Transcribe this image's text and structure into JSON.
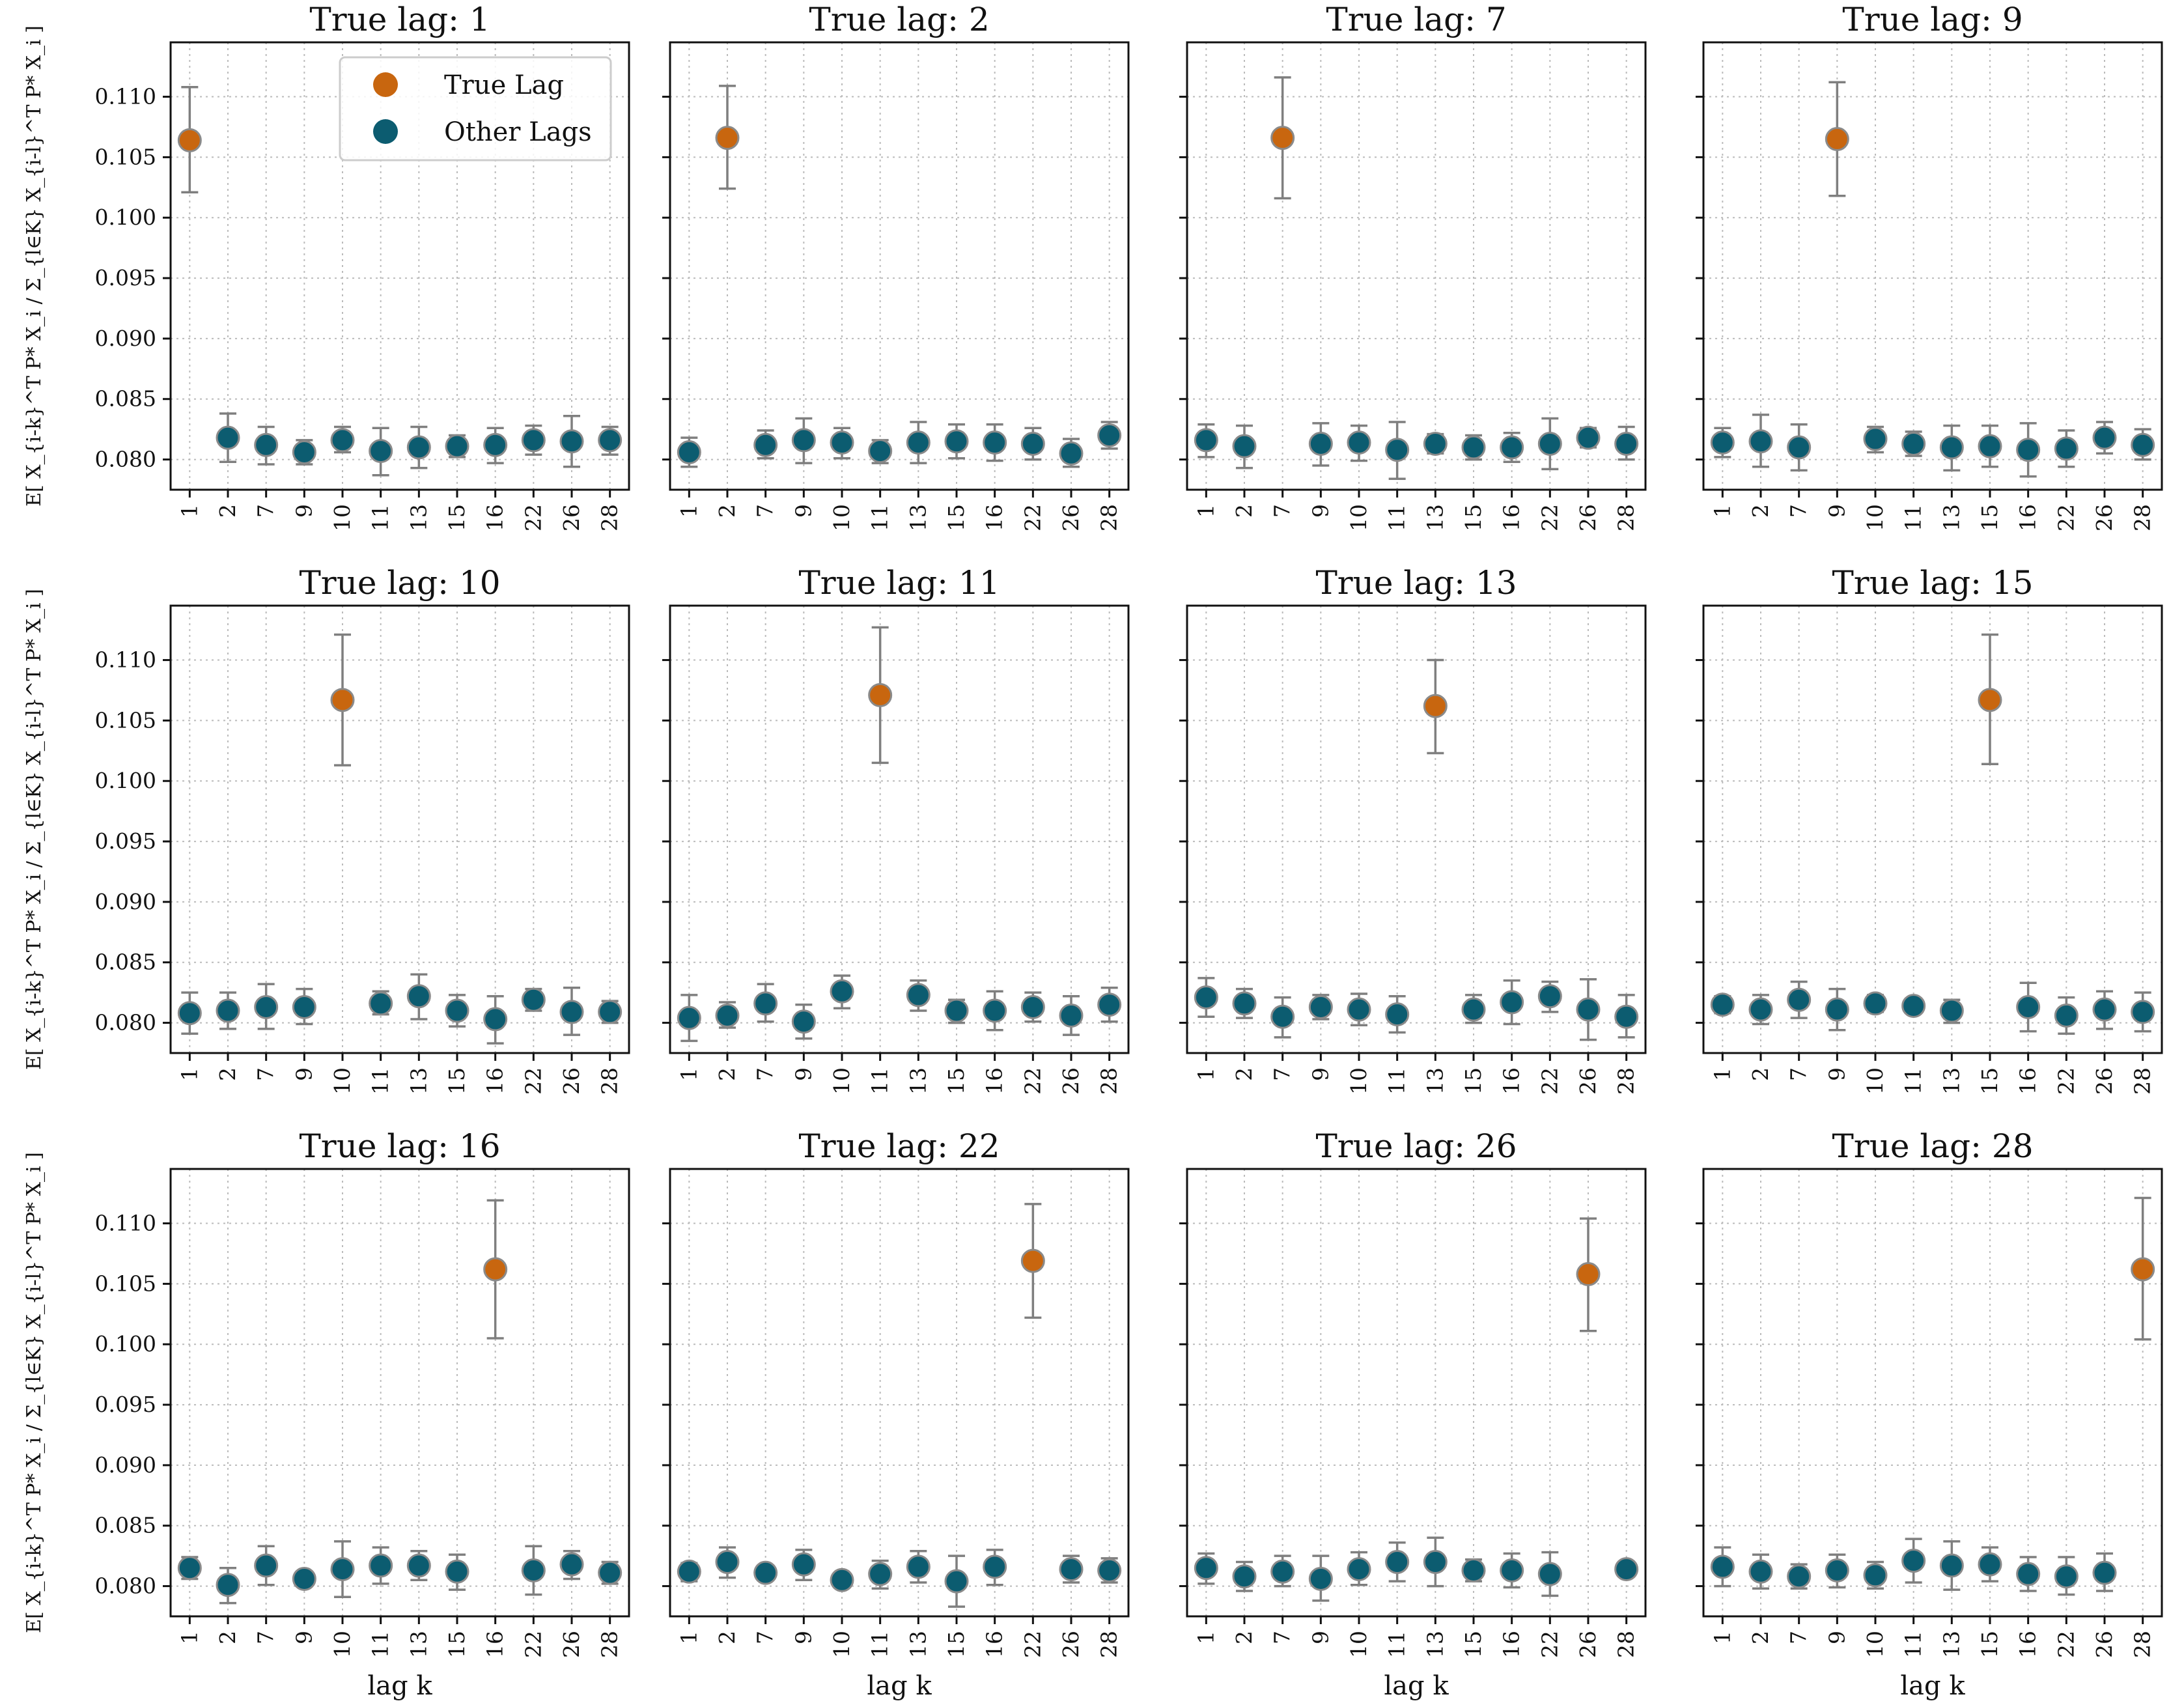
{
  "chart_data": {
    "type": "scatter",
    "layout": "3 rows x 4 columns of subplots",
    "x_categories": [
      "1",
      "2",
      "7",
      "9",
      "10",
      "11",
      "13",
      "15",
      "16",
      "22",
      "26",
      "28"
    ],
    "xlabel": "lag k",
    "ylabel": "E[ X_{i-k}^T P* X_i / Σ_{l∈K} X_{i-l}^T P* X_i ]",
    "ylim": [
      0.0775,
      0.1145
    ],
    "yticks": [
      "0.080",
      "0.085",
      "0.090",
      "0.095",
      "0.100",
      "0.105",
      "0.110"
    ],
    "grid": true,
    "error_bars": true,
    "legend": {
      "placement": "top-right of first subplot",
      "entries": [
        {
          "label": "True Lag",
          "color": "#c8660f"
        },
        {
          "label": "Other Lags",
          "color": "#0c5c70"
        }
      ]
    },
    "subplots": [
      {
        "title": "True lag:  1",
        "true_lag": "1",
        "points": [
          {
            "k": "1",
            "y": 0.1064,
            "lo": 0.1021,
            "hi": 0.1108
          },
          {
            "k": "2",
            "y": 0.0818,
            "lo": 0.0798,
            "hi": 0.0838
          },
          {
            "k": "7",
            "y": 0.0812,
            "lo": 0.0796,
            "hi": 0.0827
          },
          {
            "k": "9",
            "y": 0.0806,
            "lo": 0.0796,
            "hi": 0.0816
          },
          {
            "k": "10",
            "y": 0.0816,
            "lo": 0.0806,
            "hi": 0.0827
          },
          {
            "k": "11",
            "y": 0.0807,
            "lo": 0.0787,
            "hi": 0.0826
          },
          {
            "k": "13",
            "y": 0.081,
            "lo": 0.0793,
            "hi": 0.0827
          },
          {
            "k": "15",
            "y": 0.0811,
            "lo": 0.0802,
            "hi": 0.082
          },
          {
            "k": "16",
            "y": 0.0812,
            "lo": 0.0797,
            "hi": 0.0826
          },
          {
            "k": "22",
            "y": 0.0816,
            "lo": 0.0804,
            "hi": 0.0828
          },
          {
            "k": "26",
            "y": 0.0815,
            "lo": 0.0794,
            "hi": 0.0836
          },
          {
            "k": "28",
            "y": 0.0816,
            "lo": 0.0804,
            "hi": 0.0827
          }
        ]
      },
      {
        "title": "True lag:  2",
        "true_lag": "2",
        "points": [
          {
            "k": "1",
            "y": 0.0806,
            "lo": 0.0794,
            "hi": 0.0818
          },
          {
            "k": "2",
            "y": 0.1066,
            "lo": 0.1024,
            "hi": 0.1109
          },
          {
            "k": "7",
            "y": 0.0812,
            "lo": 0.0801,
            "hi": 0.0824
          },
          {
            "k": "9",
            "y": 0.0816,
            "lo": 0.0797,
            "hi": 0.0834
          },
          {
            "k": "10",
            "y": 0.0814,
            "lo": 0.0801,
            "hi": 0.0826
          },
          {
            "k": "11",
            "y": 0.0807,
            "lo": 0.0797,
            "hi": 0.0816
          },
          {
            "k": "13",
            "y": 0.0814,
            "lo": 0.0797,
            "hi": 0.0831
          },
          {
            "k": "15",
            "y": 0.0815,
            "lo": 0.0801,
            "hi": 0.0829
          },
          {
            "k": "16",
            "y": 0.0814,
            "lo": 0.0799,
            "hi": 0.0829
          },
          {
            "k": "22",
            "y": 0.0813,
            "lo": 0.08,
            "hi": 0.0826
          },
          {
            "k": "26",
            "y": 0.0805,
            "lo": 0.0794,
            "hi": 0.0817
          },
          {
            "k": "28",
            "y": 0.082,
            "lo": 0.0809,
            "hi": 0.0831
          }
        ]
      },
      {
        "title": "True lag:  7",
        "true_lag": "7",
        "points": [
          {
            "k": "1",
            "y": 0.0816,
            "lo": 0.0802,
            "hi": 0.0829
          },
          {
            "k": "2",
            "y": 0.0811,
            "lo": 0.0793,
            "hi": 0.0828
          },
          {
            "k": "7",
            "y": 0.1066,
            "lo": 0.1016,
            "hi": 0.1116
          },
          {
            "k": "9",
            "y": 0.0813,
            "lo": 0.0795,
            "hi": 0.083
          },
          {
            "k": "10",
            "y": 0.0814,
            "lo": 0.0799,
            "hi": 0.0828
          },
          {
            "k": "11",
            "y": 0.0808,
            "lo": 0.0784,
            "hi": 0.0831
          },
          {
            "k": "13",
            "y": 0.0813,
            "lo": 0.0805,
            "hi": 0.0821
          },
          {
            "k": "15",
            "y": 0.081,
            "lo": 0.08,
            "hi": 0.082
          },
          {
            "k": "16",
            "y": 0.081,
            "lo": 0.0798,
            "hi": 0.0822
          },
          {
            "k": "22",
            "y": 0.0813,
            "lo": 0.0792,
            "hi": 0.0834
          },
          {
            "k": "26",
            "y": 0.0818,
            "lo": 0.081,
            "hi": 0.0826
          },
          {
            "k": "28",
            "y": 0.0813,
            "lo": 0.08,
            "hi": 0.0827
          }
        ]
      },
      {
        "title": "True lag:  9",
        "true_lag": "9",
        "points": [
          {
            "k": "1",
            "y": 0.0814,
            "lo": 0.0802,
            "hi": 0.0826
          },
          {
            "k": "2",
            "y": 0.0815,
            "lo": 0.0794,
            "hi": 0.0837
          },
          {
            "k": "7",
            "y": 0.081,
            "lo": 0.0791,
            "hi": 0.0829
          },
          {
            "k": "9",
            "y": 0.1065,
            "lo": 0.1018,
            "hi": 0.1112
          },
          {
            "k": "10",
            "y": 0.0817,
            "lo": 0.0806,
            "hi": 0.0827
          },
          {
            "k": "11",
            "y": 0.0813,
            "lo": 0.0803,
            "hi": 0.0823
          },
          {
            "k": "13",
            "y": 0.081,
            "lo": 0.0791,
            "hi": 0.0828
          },
          {
            "k": "15",
            "y": 0.0811,
            "lo": 0.0794,
            "hi": 0.0828
          },
          {
            "k": "16",
            "y": 0.0808,
            "lo": 0.0786,
            "hi": 0.083
          },
          {
            "k": "22",
            "y": 0.0809,
            "lo": 0.0794,
            "hi": 0.0824
          },
          {
            "k": "26",
            "y": 0.0818,
            "lo": 0.0805,
            "hi": 0.0831
          },
          {
            "k": "28",
            "y": 0.0812,
            "lo": 0.08,
            "hi": 0.0825
          }
        ]
      },
      {
        "title": "True lag:  10",
        "true_lag": "10",
        "points": [
          {
            "k": "1",
            "y": 0.0808,
            "lo": 0.0791,
            "hi": 0.0825
          },
          {
            "k": "2",
            "y": 0.081,
            "lo": 0.0795,
            "hi": 0.0825
          },
          {
            "k": "7",
            "y": 0.0813,
            "lo": 0.0795,
            "hi": 0.0832
          },
          {
            "k": "9",
            "y": 0.0813,
            "lo": 0.0799,
            "hi": 0.0828
          },
          {
            "k": "10",
            "y": 0.1067,
            "lo": 0.1013,
            "hi": 0.1121
          },
          {
            "k": "11",
            "y": 0.0816,
            "lo": 0.0807,
            "hi": 0.0826
          },
          {
            "k": "13",
            "y": 0.0822,
            "lo": 0.0803,
            "hi": 0.084
          },
          {
            "k": "15",
            "y": 0.081,
            "lo": 0.0797,
            "hi": 0.0823
          },
          {
            "k": "16",
            "y": 0.0803,
            "lo": 0.0783,
            "hi": 0.0822
          },
          {
            "k": "22",
            "y": 0.0819,
            "lo": 0.081,
            "hi": 0.0828
          },
          {
            "k": "26",
            "y": 0.0809,
            "lo": 0.079,
            "hi": 0.0829
          },
          {
            "k": "28",
            "y": 0.0809,
            "lo": 0.08,
            "hi": 0.0818
          }
        ]
      },
      {
        "title": "True lag:  11",
        "true_lag": "11",
        "points": [
          {
            "k": "1",
            "y": 0.0804,
            "lo": 0.0785,
            "hi": 0.0823
          },
          {
            "k": "2",
            "y": 0.0806,
            "lo": 0.0796,
            "hi": 0.0817
          },
          {
            "k": "7",
            "y": 0.0816,
            "lo": 0.0801,
            "hi": 0.0832
          },
          {
            "k": "9",
            "y": 0.0801,
            "lo": 0.0787,
            "hi": 0.0815
          },
          {
            "k": "10",
            "y": 0.0826,
            "lo": 0.0812,
            "hi": 0.0839
          },
          {
            "k": "11",
            "y": 0.1071,
            "lo": 0.1015,
            "hi": 0.1127
          },
          {
            "k": "13",
            "y": 0.0823,
            "lo": 0.081,
            "hi": 0.0835
          },
          {
            "k": "15",
            "y": 0.081,
            "lo": 0.08,
            "hi": 0.0819
          },
          {
            "k": "16",
            "y": 0.081,
            "lo": 0.0794,
            "hi": 0.0826
          },
          {
            "k": "22",
            "y": 0.0813,
            "lo": 0.0801,
            "hi": 0.0825
          },
          {
            "k": "26",
            "y": 0.0806,
            "lo": 0.079,
            "hi": 0.0822
          },
          {
            "k": "28",
            "y": 0.0815,
            "lo": 0.0801,
            "hi": 0.0829
          }
        ]
      },
      {
        "title": "True lag:  13",
        "true_lag": "13",
        "points": [
          {
            "k": "1",
            "y": 0.0821,
            "lo": 0.0805,
            "hi": 0.0837
          },
          {
            "k": "2",
            "y": 0.0816,
            "lo": 0.0804,
            "hi": 0.0828
          },
          {
            "k": "7",
            "y": 0.0805,
            "lo": 0.0788,
            "hi": 0.0821
          },
          {
            "k": "9",
            "y": 0.0813,
            "lo": 0.0803,
            "hi": 0.0823
          },
          {
            "k": "10",
            "y": 0.0811,
            "lo": 0.0798,
            "hi": 0.0824
          },
          {
            "k": "11",
            "y": 0.0807,
            "lo": 0.0792,
            "hi": 0.0822
          },
          {
            "k": "13",
            "y": 0.1062,
            "lo": 0.1023,
            "hi": 0.11
          },
          {
            "k": "15",
            "y": 0.0811,
            "lo": 0.08,
            "hi": 0.0823
          },
          {
            "k": "16",
            "y": 0.0817,
            "lo": 0.0799,
            "hi": 0.0835
          },
          {
            "k": "22",
            "y": 0.0822,
            "lo": 0.0809,
            "hi": 0.0834
          },
          {
            "k": "26",
            "y": 0.0811,
            "lo": 0.0786,
            "hi": 0.0836
          },
          {
            "k": "28",
            "y": 0.0805,
            "lo": 0.0788,
            "hi": 0.0823
          }
        ]
      },
      {
        "title": "True lag:  15",
        "true_lag": "15",
        "points": [
          {
            "k": "1",
            "y": 0.0815,
            "lo": 0.0808,
            "hi": 0.0822
          },
          {
            "k": "2",
            "y": 0.0811,
            "lo": 0.0799,
            "hi": 0.0823
          },
          {
            "k": "7",
            "y": 0.0819,
            "lo": 0.0804,
            "hi": 0.0834
          },
          {
            "k": "9",
            "y": 0.0811,
            "lo": 0.0794,
            "hi": 0.0828
          },
          {
            "k": "10",
            "y": 0.0816,
            "lo": 0.0809,
            "hi": 0.0823
          },
          {
            "k": "11",
            "y": 0.0814,
            "lo": 0.0808,
            "hi": 0.082
          },
          {
            "k": "13",
            "y": 0.081,
            "lo": 0.08,
            "hi": 0.0819
          },
          {
            "k": "15",
            "y": 0.1067,
            "lo": 0.1014,
            "hi": 0.1121
          },
          {
            "k": "16",
            "y": 0.0813,
            "lo": 0.0793,
            "hi": 0.0833
          },
          {
            "k": "22",
            "y": 0.0806,
            "lo": 0.0791,
            "hi": 0.0821
          },
          {
            "k": "26",
            "y": 0.0811,
            "lo": 0.0795,
            "hi": 0.0826
          },
          {
            "k": "28",
            "y": 0.0809,
            "lo": 0.0793,
            "hi": 0.0825
          }
        ]
      },
      {
        "title": "True lag:  16",
        "true_lag": "16",
        "points": [
          {
            "k": "1",
            "y": 0.0815,
            "lo": 0.0806,
            "hi": 0.0824
          },
          {
            "k": "2",
            "y": 0.0801,
            "lo": 0.0786,
            "hi": 0.0815
          },
          {
            "k": "7",
            "y": 0.0817,
            "lo": 0.0801,
            "hi": 0.0833
          },
          {
            "k": "9",
            "y": 0.0806,
            "lo": 0.08,
            "hi": 0.0812
          },
          {
            "k": "10",
            "y": 0.0814,
            "lo": 0.0791,
            "hi": 0.0837
          },
          {
            "k": "11",
            "y": 0.0817,
            "lo": 0.0802,
            "hi": 0.0832
          },
          {
            "k": "13",
            "y": 0.0817,
            "lo": 0.0805,
            "hi": 0.0829
          },
          {
            "k": "15",
            "y": 0.0812,
            "lo": 0.0797,
            "hi": 0.0826
          },
          {
            "k": "16",
            "y": 0.1062,
            "lo": 0.1005,
            "hi": 0.1119
          },
          {
            "k": "22",
            "y": 0.0813,
            "lo": 0.0793,
            "hi": 0.0833
          },
          {
            "k": "26",
            "y": 0.0818,
            "lo": 0.0806,
            "hi": 0.0829
          },
          {
            "k": "28",
            "y": 0.0811,
            "lo": 0.0802,
            "hi": 0.082
          }
        ]
      },
      {
        "title": "True lag:  22",
        "true_lag": "22",
        "points": [
          {
            "k": "1",
            "y": 0.0812,
            "lo": 0.0804,
            "hi": 0.0819
          },
          {
            "k": "2",
            "y": 0.082,
            "lo": 0.0807,
            "hi": 0.0832
          },
          {
            "k": "7",
            "y": 0.0811,
            "lo": 0.0805,
            "hi": 0.0817
          },
          {
            "k": "9",
            "y": 0.0818,
            "lo": 0.0805,
            "hi": 0.083
          },
          {
            "k": "10",
            "y": 0.0805,
            "lo": 0.0799,
            "hi": 0.081
          },
          {
            "k": "11",
            "y": 0.081,
            "lo": 0.0798,
            "hi": 0.0821
          },
          {
            "k": "13",
            "y": 0.0816,
            "lo": 0.0803,
            "hi": 0.0829
          },
          {
            "k": "15",
            "y": 0.0804,
            "lo": 0.0783,
            "hi": 0.0825
          },
          {
            "k": "16",
            "y": 0.0816,
            "lo": 0.0801,
            "hi": 0.083
          },
          {
            "k": "22",
            "y": 0.1069,
            "lo": 0.1022,
            "hi": 0.1116
          },
          {
            "k": "26",
            "y": 0.0814,
            "lo": 0.0803,
            "hi": 0.0825
          },
          {
            "k": "28",
            "y": 0.0813,
            "lo": 0.0803,
            "hi": 0.0823
          }
        ]
      },
      {
        "title": "True lag:  26",
        "true_lag": "26",
        "points": [
          {
            "k": "1",
            "y": 0.0815,
            "lo": 0.0802,
            "hi": 0.0827
          },
          {
            "k": "2",
            "y": 0.0808,
            "lo": 0.0796,
            "hi": 0.082
          },
          {
            "k": "7",
            "y": 0.0812,
            "lo": 0.08,
            "hi": 0.0825
          },
          {
            "k": "9",
            "y": 0.0806,
            "lo": 0.0788,
            "hi": 0.0825
          },
          {
            "k": "10",
            "y": 0.0814,
            "lo": 0.0801,
            "hi": 0.0828
          },
          {
            "k": "11",
            "y": 0.082,
            "lo": 0.0804,
            "hi": 0.0836
          },
          {
            "k": "13",
            "y": 0.082,
            "lo": 0.08,
            "hi": 0.084
          },
          {
            "k": "15",
            "y": 0.0813,
            "lo": 0.0804,
            "hi": 0.0822
          },
          {
            "k": "16",
            "y": 0.0813,
            "lo": 0.0799,
            "hi": 0.0827
          },
          {
            "k": "22",
            "y": 0.081,
            "lo": 0.0792,
            "hi": 0.0828
          },
          {
            "k": "26",
            "y": 0.1058,
            "lo": 0.1011,
            "hi": 0.1104
          },
          {
            "k": "28",
            "y": 0.0814,
            "lo": 0.0808,
            "hi": 0.082
          }
        ]
      },
      {
        "title": "True lag:  28",
        "true_lag": "28",
        "points": [
          {
            "k": "1",
            "y": 0.0816,
            "lo": 0.08,
            "hi": 0.0832
          },
          {
            "k": "2",
            "y": 0.0812,
            "lo": 0.0798,
            "hi": 0.0826
          },
          {
            "k": "7",
            "y": 0.0808,
            "lo": 0.0798,
            "hi": 0.0818
          },
          {
            "k": "9",
            "y": 0.0813,
            "lo": 0.0799,
            "hi": 0.0826
          },
          {
            "k": "10",
            "y": 0.0809,
            "lo": 0.0798,
            "hi": 0.082
          },
          {
            "k": "11",
            "y": 0.0821,
            "lo": 0.0803,
            "hi": 0.0839
          },
          {
            "k": "13",
            "y": 0.0817,
            "lo": 0.0797,
            "hi": 0.0837
          },
          {
            "k": "15",
            "y": 0.0818,
            "lo": 0.0804,
            "hi": 0.0832
          },
          {
            "k": "16",
            "y": 0.081,
            "lo": 0.0796,
            "hi": 0.0824
          },
          {
            "k": "22",
            "y": 0.0808,
            "lo": 0.0793,
            "hi": 0.0824
          },
          {
            "k": "26",
            "y": 0.0811,
            "lo": 0.0796,
            "hi": 0.0827
          },
          {
            "k": "28",
            "y": 0.1062,
            "lo": 0.1004,
            "hi": 0.1121
          }
        ]
      }
    ]
  }
}
